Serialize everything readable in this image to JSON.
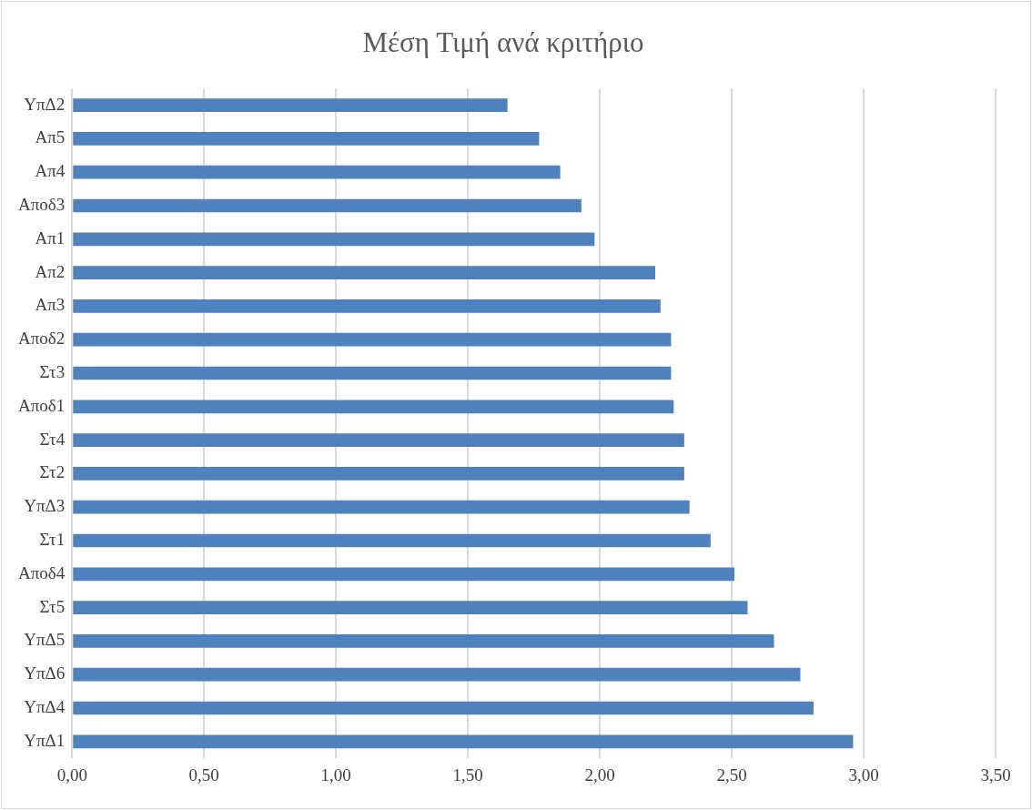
{
  "chart_data": {
    "type": "bar",
    "orientation": "horizontal",
    "title": "Μέση Τιμή ανά κριτήριο",
    "categories": [
      "YπΔ2",
      "Απ5",
      "Απ4",
      "Αποδ3",
      "Απ1",
      "Απ2",
      "Απ3",
      "Αποδ2",
      "Στ3",
      "Αποδ1",
      "Στ4",
      "Στ2",
      "YπΔ3",
      "Στ1",
      "Αποδ4",
      "Στ5",
      "YπΔ5",
      "YπΔ6",
      "YπΔ4",
      "YπΔ1"
    ],
    "values": [
      1.65,
      1.77,
      1.85,
      1.93,
      1.98,
      2.21,
      2.23,
      2.27,
      2.27,
      2.28,
      2.32,
      2.32,
      2.34,
      2.42,
      2.51,
      2.56,
      2.66,
      2.76,
      2.81,
      2.96
    ],
    "color": "#4f81bd",
    "xlim": [
      0,
      3.5
    ],
    "xticks": [
      {
        "value": 0,
        "label": "0,00"
      },
      {
        "value": 0.5,
        "label": "0,50"
      },
      {
        "value": 1,
        "label": "1,00"
      },
      {
        "value": 1.5,
        "label": "1,50"
      },
      {
        "value": 2,
        "label": "2,00"
      },
      {
        "value": 2.5,
        "label": "2,50"
      },
      {
        "value": 3,
        "label": "3,00"
      },
      {
        "value": 3.5,
        "label": "3,50"
      }
    ],
    "grid": "x",
    "legend": false
  }
}
